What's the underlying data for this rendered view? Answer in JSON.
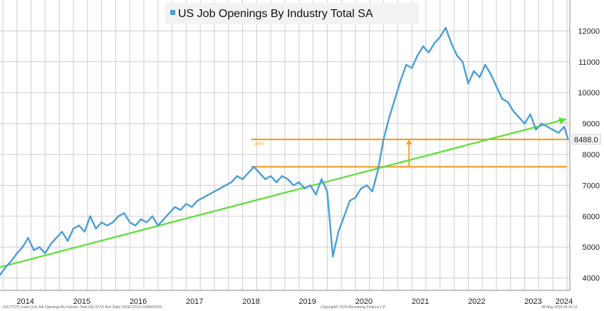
{
  "chart_data": {
    "type": "line",
    "title": "US Job Openings By Industry Total SA",
    "legend_position": "top-left",
    "grid": true,
    "colors": {
      "series": "#4a9fd8",
      "trend": "#5fe03a",
      "band": "#f0a030",
      "arrow": "#f0a030",
      "last_value_box": "#f5f5f5"
    },
    "ylim": [
      3600,
      13000
    ],
    "yticks": [
      "4000",
      "5000",
      "6000",
      "7000",
      "8000",
      "9000",
      "10000",
      "11000",
      "12000"
    ],
    "xlim": [
      2013.95,
      2024.05
    ],
    "xticks": [
      "2014",
      "2015",
      "2016",
      "2017",
      "2018",
      "2019",
      "2020",
      "2021",
      "2022",
      "2023",
      "2024"
    ],
    "series": [
      {
        "name": "US Job Openings By Industry Total SA",
        "x": [
          2013.95,
          2014.05,
          2014.15,
          2014.25,
          2014.35,
          2014.45,
          2014.55,
          2014.65,
          2014.75,
          2014.85,
          2014.95,
          2015.05,
          2015.15,
          2015.25,
          2015.35,
          2015.45,
          2015.55,
          2015.65,
          2015.75,
          2015.85,
          2015.95,
          2016.05,
          2016.15,
          2016.25,
          2016.35,
          2016.45,
          2016.55,
          2016.65,
          2016.75,
          2016.85,
          2016.95,
          2017.05,
          2017.15,
          2017.25,
          2017.35,
          2017.45,
          2017.55,
          2017.65,
          2017.75,
          2017.85,
          2017.95,
          2018.05,
          2018.15,
          2018.25,
          2018.35,
          2018.45,
          2018.55,
          2018.65,
          2018.75,
          2018.85,
          2018.95,
          2019.05,
          2019.15,
          2019.25,
          2019.35,
          2019.45,
          2019.55,
          2019.65,
          2019.75,
          2019.85,
          2019.95,
          2020.05,
          2020.15,
          2020.25,
          2020.35,
          2020.45,
          2020.55,
          2020.65,
          2020.75,
          2020.85,
          2020.95,
          2021.05,
          2021.15,
          2021.25,
          2021.35,
          2021.45,
          2021.55,
          2021.65,
          2021.75,
          2021.85,
          2021.95,
          2022.05,
          2022.15,
          2022.25,
          2022.35,
          2022.45,
          2022.55,
          2022.65,
          2022.75,
          2022.85,
          2022.95,
          2023.05,
          2023.15,
          2023.25,
          2023.35,
          2023.45,
          2023.55,
          2023.65,
          2023.75,
          2023.85,
          2023.95,
          2024.02
        ],
        "values": [
          4100,
          4350,
          4550,
          4800,
          5000,
          5300,
          4900,
          5000,
          4800,
          5100,
          5300,
          5500,
          5200,
          5600,
          5700,
          5500,
          6000,
          5600,
          5800,
          5700,
          5800,
          6000,
          6100,
          5800,
          5700,
          5900,
          5800,
          6000,
          5700,
          5900,
          6100,
          6300,
          6200,
          6400,
          6300,
          6500,
          6600,
          6700,
          6800,
          6900,
          7000,
          7100,
          7300,
          7200,
          7400,
          7600,
          7400,
          7200,
          7300,
          7100,
          7300,
          7200,
          7000,
          7100,
          6900,
          7000,
          6700,
          7200,
          6800,
          4700,
          5500,
          6000,
          6500,
          6600,
          6900,
          7000,
          6800,
          7500,
          8500,
          9200,
          9800,
          10400,
          10900,
          10800,
          11200,
          11500,
          11300,
          11600,
          11800,
          12100,
          11600,
          11200,
          11000,
          10300,
          10700,
          10500,
          10900,
          10600,
          10200,
          9800,
          9700,
          9400,
          9200,
          9000,
          9300,
          8800,
          9000,
          8900,
          8800,
          8700,
          8900,
          8488
        ]
      }
    ],
    "last_value_label": "8488.0",
    "trend_line": {
      "x": [
        2013.95,
        2024.0
      ],
      "values": [
        4350,
        9150
      ]
    },
    "band": {
      "upper": 8488,
      "lower": 7600,
      "x_start": 2018.4,
      "x_end": 2024.0,
      "label": "2834"
    },
    "footer_left": "JOLTTOTL Index (US Job Openings By Industry Total SA) 07/10 Beri Daily 31DEC2013-31MAR2024",
    "footer_center": "Copyright© 2024 Bloomberg Finance L.P.",
    "footer_right": "08-May-2024 05:16:12"
  }
}
